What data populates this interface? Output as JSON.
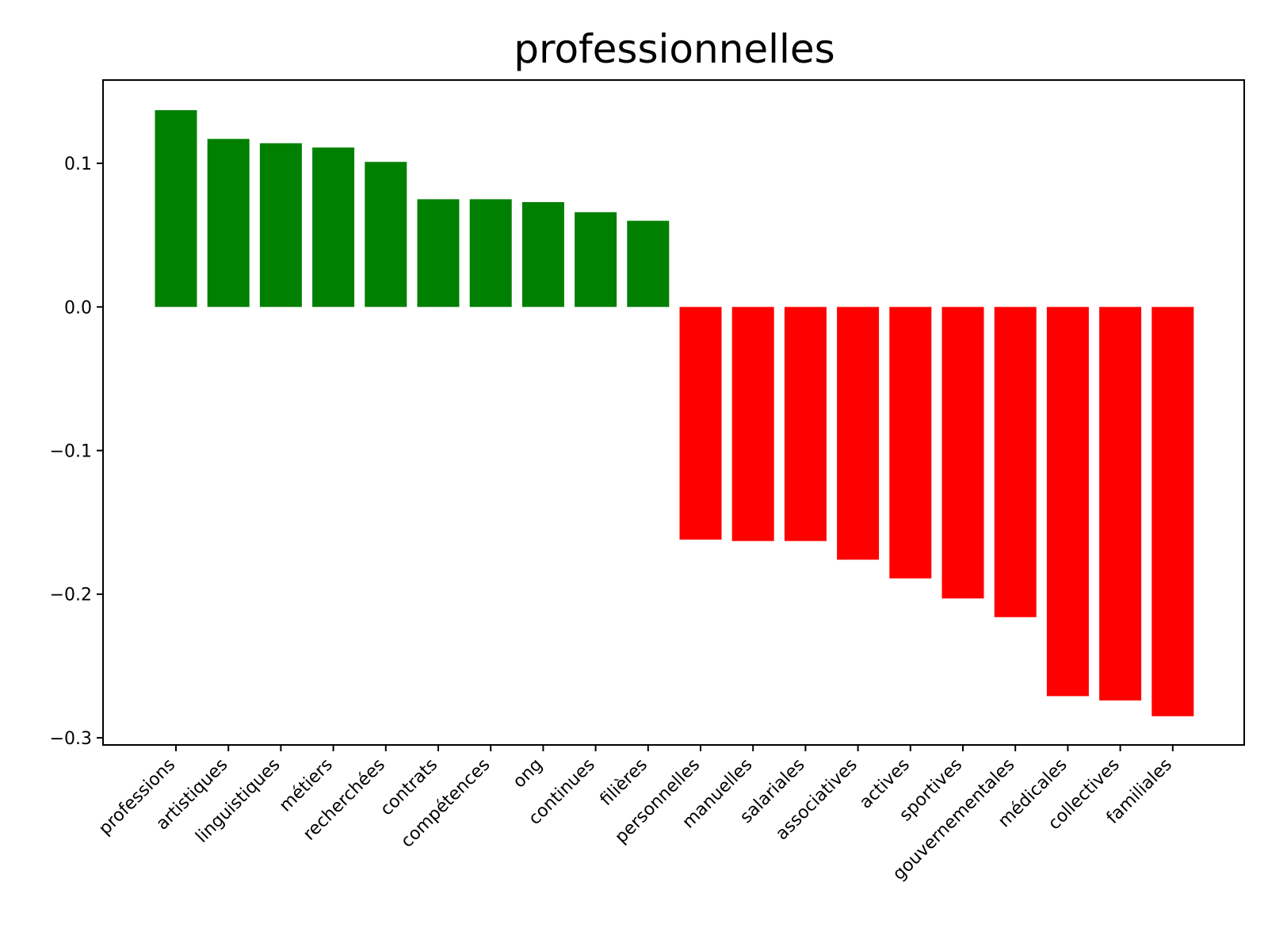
{
  "chart_data": {
    "type": "bar",
    "title": "professionnelles",
    "xlabel": "",
    "ylabel": "",
    "ylim": [
      -0.305,
      0.158
    ],
    "yticks": [
      -0.3,
      -0.2,
      -0.1,
      0.0,
      0.1
    ],
    "ytick_labels": [
      "−0.3",
      "−0.2",
      "−0.1",
      "0.0",
      "0.1"
    ],
    "grid": false,
    "positive_color": "#008000",
    "negative_color": "#ff0000",
    "categories": [
      "professions",
      "artistiques",
      "linguistiques",
      "métiers",
      "recherchées",
      "contrats",
      "compétences",
      "ong",
      "continues",
      "filières",
      "personnelles",
      "manuelles",
      "salariales",
      "associatives",
      "actives",
      "sportives",
      "gouvernementales",
      "médicales",
      "collectives",
      "familiales"
    ],
    "values": [
      0.137,
      0.117,
      0.114,
      0.111,
      0.101,
      0.075,
      0.075,
      0.073,
      0.066,
      0.06,
      -0.162,
      -0.163,
      -0.163,
      -0.176,
      -0.189,
      -0.203,
      -0.216,
      -0.271,
      -0.274,
      -0.285
    ]
  }
}
